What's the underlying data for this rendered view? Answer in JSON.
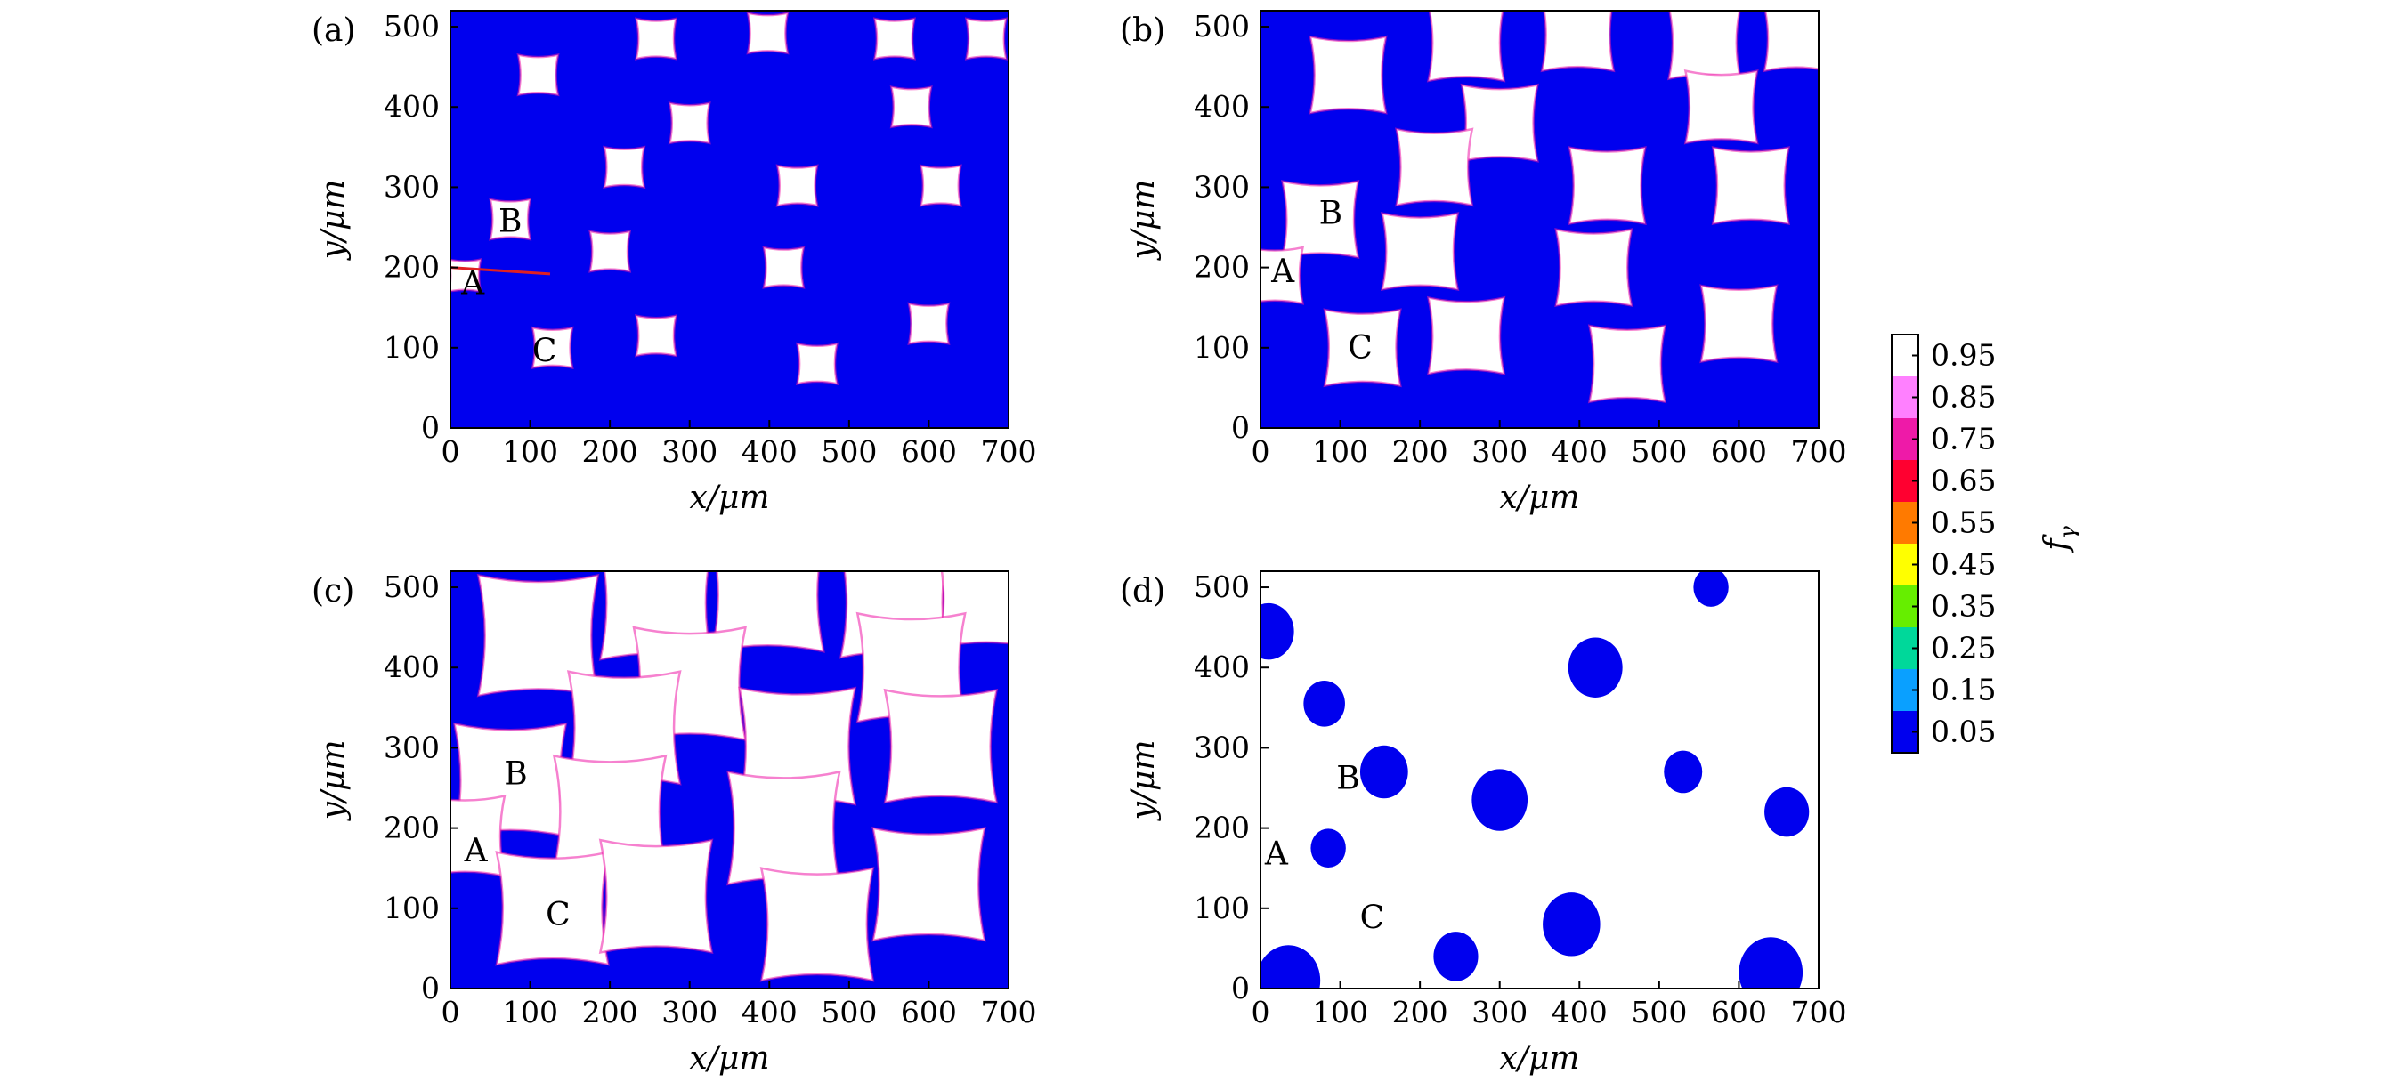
{
  "chart_data": {
    "type": "heatmap",
    "colorbar": {
      "label": "f",
      "label_subscript": "γ",
      "ticks": [
        "0.95",
        "0.85",
        "0.75",
        "0.65",
        "0.55",
        "0.45",
        "0.35",
        "0.25",
        "0.15",
        "0.05"
      ],
      "colors": [
        "#ffffff",
        "#ff80ff",
        "#ee1aa8",
        "#ff0030",
        "#ff7a00",
        "#ffff00",
        "#66ee00",
        "#00d89a",
        "#0aa0ff",
        "#0000ee"
      ]
    },
    "panels": [
      {
        "label": "(a)",
        "xlabel": "x/μm",
        "ylabel": "y/μm",
        "xlim": [
          0,
          700
        ],
        "ylim": [
          0,
          520
        ],
        "xticks": [
          "0",
          "100",
          "200",
          "300",
          "400",
          "500",
          "600",
          "700"
        ],
        "yticks": [
          "0",
          "100",
          "200",
          "300",
          "400",
          "500"
        ],
        "background_value": 0.05,
        "grains": [
          {
            "x": 110,
            "y": 440,
            "s": 50
          },
          {
            "x": 258,
            "y": 485,
            "s": 50
          },
          {
            "x": 398,
            "y": 492,
            "s": 50
          },
          {
            "x": 557,
            "y": 485,
            "s": 50
          },
          {
            "x": 672,
            "y": 485,
            "s": 50
          },
          {
            "x": 300,
            "y": 380,
            "s": 50
          },
          {
            "x": 578,
            "y": 400,
            "s": 50
          },
          {
            "x": 218,
            "y": 325,
            "s": 50
          },
          {
            "x": 435,
            "y": 302,
            "s": 50
          },
          {
            "x": 615,
            "y": 302,
            "s": 50
          },
          {
            "x": 75,
            "y": 260,
            "s": 50
          },
          {
            "x": 200,
            "y": 220,
            "s": 50
          },
          {
            "x": 418,
            "y": 200,
            "s": 50
          },
          {
            "x": 18,
            "y": 190,
            "s": 40
          },
          {
            "x": 128,
            "y": 100,
            "s": 50
          },
          {
            "x": 258,
            "y": 115,
            "s": 50
          },
          {
            "x": 460,
            "y": 80,
            "s": 50
          },
          {
            "x": 600,
            "y": 130,
            "s": 50
          }
        ],
        "annotations": [
          {
            "text": "A",
            "x": 28,
            "y": 180
          },
          {
            "text": "B",
            "x": 75,
            "y": 258
          },
          {
            "text": "C",
            "x": 118,
            "y": 96
          }
        ],
        "marker_line": {
          "from": [
            0,
            200
          ],
          "to": [
            125,
            192
          ],
          "color": "#e02020"
        }
      },
      {
        "label": "(b)",
        "xlabel": "x/μm",
        "ylabel": "y/μm",
        "xlim": [
          0,
          700
        ],
        "ylim": [
          0,
          520
        ],
        "xticks": [
          "0",
          "100",
          "200",
          "300",
          "400",
          "500",
          "600",
          "700"
        ],
        "yticks": [
          "0",
          "100",
          "200",
          "300",
          "400",
          "500"
        ],
        "background_value": 0.05,
        "grains": [
          {
            "x": 110,
            "y": 440,
            "s": 95
          },
          {
            "x": 258,
            "y": 480,
            "s": 95
          },
          {
            "x": 398,
            "y": 490,
            "s": 90
          },
          {
            "x": 557,
            "y": 480,
            "s": 90
          },
          {
            "x": 672,
            "y": 485,
            "s": 80
          },
          {
            "x": 300,
            "y": 380,
            "s": 95
          },
          {
            "x": 578,
            "y": 400,
            "s": 90
          },
          {
            "x": 218,
            "y": 325,
            "s": 95
          },
          {
            "x": 435,
            "y": 302,
            "s": 95
          },
          {
            "x": 615,
            "y": 302,
            "s": 95
          },
          {
            "x": 75,
            "y": 260,
            "s": 95
          },
          {
            "x": 200,
            "y": 220,
            "s": 95
          },
          {
            "x": 418,
            "y": 200,
            "s": 95
          },
          {
            "x": 18,
            "y": 190,
            "s": 70
          },
          {
            "x": 128,
            "y": 100,
            "s": 95
          },
          {
            "x": 258,
            "y": 115,
            "s": 95
          },
          {
            "x": 460,
            "y": 80,
            "s": 95
          },
          {
            "x": 600,
            "y": 130,
            "s": 95
          }
        ],
        "annotations": [
          {
            "text": "A",
            "x": 28,
            "y": 195
          },
          {
            "text": "B",
            "x": 88,
            "y": 268
          },
          {
            "text": "C",
            "x": 125,
            "y": 100
          }
        ]
      },
      {
        "label": "(c)",
        "xlabel": "x/μm",
        "ylabel": "y/μm",
        "xlim": [
          0,
          700
        ],
        "ylim": [
          0,
          520
        ],
        "xticks": [
          "0",
          "100",
          "200",
          "300",
          "400",
          "500",
          "600",
          "700"
        ],
        "yticks": [
          "0",
          "100",
          "200",
          "300",
          "400",
          "500"
        ],
        "background_value": 0.05,
        "grains": [
          {
            "x": 110,
            "y": 440,
            "s": 150
          },
          {
            "x": 258,
            "y": 480,
            "s": 140
          },
          {
            "x": 398,
            "y": 490,
            "s": 140
          },
          {
            "x": 557,
            "y": 480,
            "s": 135
          },
          {
            "x": 672,
            "y": 485,
            "s": 120
          },
          {
            "x": 300,
            "y": 380,
            "s": 140
          },
          {
            "x": 578,
            "y": 400,
            "s": 135
          },
          {
            "x": 218,
            "y": 325,
            "s": 140
          },
          {
            "x": 435,
            "y": 302,
            "s": 145
          },
          {
            "x": 615,
            "y": 302,
            "s": 140
          },
          {
            "x": 75,
            "y": 260,
            "s": 140
          },
          {
            "x": 200,
            "y": 220,
            "s": 140
          },
          {
            "x": 418,
            "y": 200,
            "s": 140
          },
          {
            "x": 18,
            "y": 190,
            "s": 100
          },
          {
            "x": 128,
            "y": 100,
            "s": 140
          },
          {
            "x": 258,
            "y": 115,
            "s": 140
          },
          {
            "x": 460,
            "y": 80,
            "s": 140
          },
          {
            "x": 600,
            "y": 130,
            "s": 140
          }
        ],
        "annotations": [
          {
            "text": "A",
            "x": 32,
            "y": 172
          },
          {
            "text": "B",
            "x": 82,
            "y": 268
          },
          {
            "text": "C",
            "x": 135,
            "y": 92
          }
        ]
      },
      {
        "label": "(d)",
        "xlabel": "x/μm",
        "ylabel": "y/μm",
        "xlim": [
          0,
          700
        ],
        "ylim": [
          0,
          520
        ],
        "xticks": [
          "0",
          "100",
          "200",
          "300",
          "400",
          "500",
          "600",
          "700"
        ],
        "yticks": [
          "0",
          "100",
          "200",
          "300",
          "400",
          "500"
        ],
        "background_value": 0.95,
        "blue_regions": [
          {
            "x": 10,
            "y": 445,
            "r": 32
          },
          {
            "x": 35,
            "y": 10,
            "r": 40
          },
          {
            "x": 80,
            "y": 355,
            "r": 26
          },
          {
            "x": 85,
            "y": 175,
            "r": 22
          },
          {
            "x": 155,
            "y": 270,
            "r": 30
          },
          {
            "x": 245,
            "y": 40,
            "r": 28
          },
          {
            "x": 300,
            "y": 235,
            "r": 35
          },
          {
            "x": 420,
            "y": 400,
            "r": 34
          },
          {
            "x": 390,
            "y": 80,
            "r": 36
          },
          {
            "x": 565,
            "y": 500,
            "r": 22
          },
          {
            "x": 660,
            "y": 220,
            "r": 28
          },
          {
            "x": 640,
            "y": 20,
            "r": 40
          },
          {
            "x": 530,
            "y": 270,
            "r": 24
          }
        ],
        "annotations": [
          {
            "text": "A",
            "x": 20,
            "y": 168
          },
          {
            "text": "B",
            "x": 110,
            "y": 262
          },
          {
            "text": "C",
            "x": 140,
            "y": 88
          }
        ]
      }
    ]
  }
}
